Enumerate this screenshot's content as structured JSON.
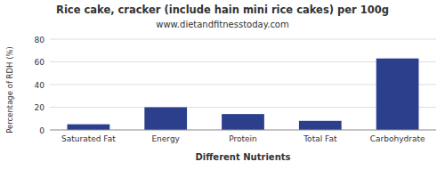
{
  "chart_data": {
    "type": "bar",
    "title": "Rice cake, cracker (include hain mini rice cakes) per 100g",
    "subtitle": "www.dietandfitnesstoday.com",
    "categories": [
      "Saturated Fat",
      "Energy",
      "Protein",
      "Total Fat",
      "Carbohydrate"
    ],
    "values": [
      5,
      20,
      14,
      8,
      63
    ],
    "color": "#2b3f8c",
    "xlabel": "Different Nutrients",
    "ylabel": "Percentage of RDH (%)",
    "ylim": [
      0,
      80
    ],
    "yticks": [
      0,
      20,
      40,
      60,
      80
    ],
    "grid": true
  }
}
